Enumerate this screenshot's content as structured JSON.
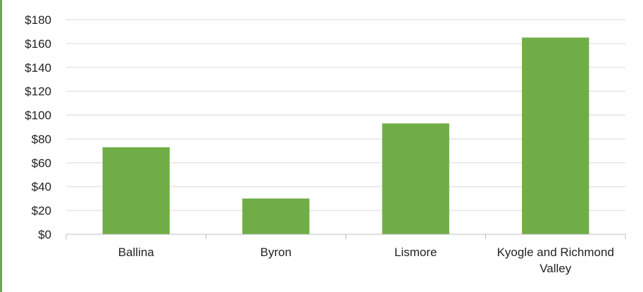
{
  "chart_data": {
    "type": "bar",
    "title": "",
    "xlabel": "",
    "ylabel": "",
    "categories": [
      "Ballina",
      "Byron",
      "Lismore",
      "Kyogle and Richmond Valley"
    ],
    "category_lines": [
      [
        "Ballina"
      ],
      [
        "Byron"
      ],
      [
        "Lismore"
      ],
      [
        "Kyogle and Richmond",
        "Valley"
      ]
    ],
    "values": [
      73,
      30,
      93,
      165
    ],
    "ylim": [
      0,
      180
    ],
    "yticks": [
      0,
      20,
      40,
      60,
      80,
      100,
      120,
      140,
      160,
      180
    ],
    "ytick_labels": [
      "$0",
      "$20",
      "$40",
      "$60",
      "$80",
      "$100",
      "$120",
      "$140",
      "$160",
      "$180"
    ],
    "grid": true,
    "legend": "none",
    "colors": {
      "bar": "#70ad47",
      "grid": "#d9d9d9",
      "axis": "#bfbfbf",
      "frame": "#6aa84f"
    }
  }
}
